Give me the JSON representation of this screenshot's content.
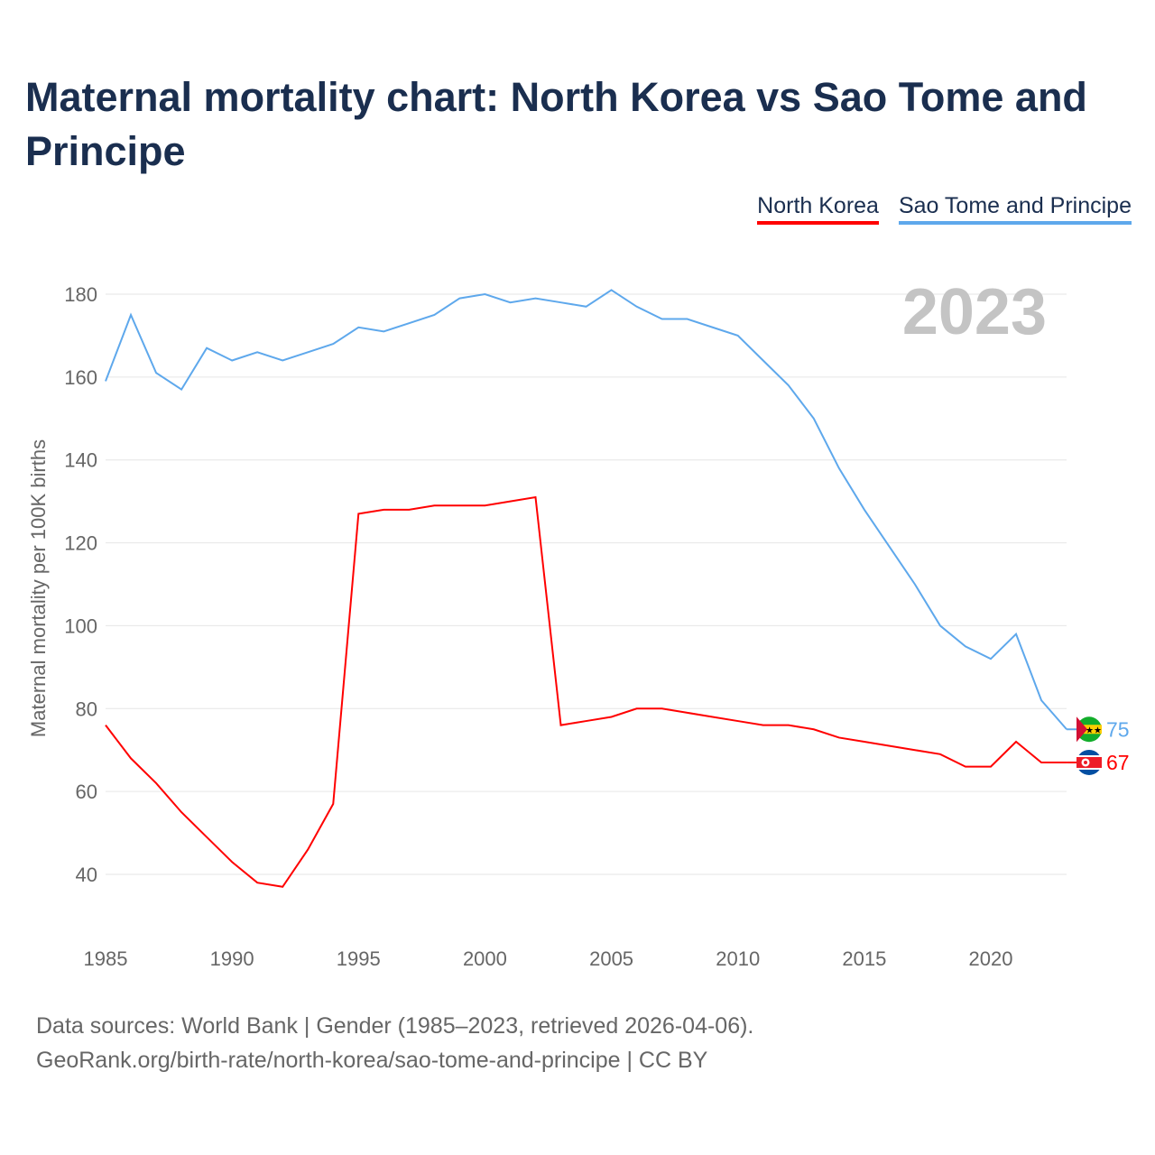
{
  "title": "Maternal mortality chart: North Korea vs Sao Tome and Principe",
  "source_line1": "Data sources: World Bank | Gender (1985–2023, retrieved 2026-04-06).",
  "source_line2": "GeoRank.org/birth-rate/north-korea/sao-tome-and-principe | CC BY",
  "chart_data": {
    "type": "line",
    "title": "Maternal mortality chart: North Korea vs Sao Tome and Principe",
    "xlabel": "",
    "ylabel": "Maternal mortality per 100K births",
    "year_label": "2023",
    "xlim": [
      1985,
      2023
    ],
    "ylim": [
      30,
      190
    ],
    "x_ticks": [
      1985,
      1990,
      1995,
      2000,
      2005,
      2010,
      2015,
      2020
    ],
    "y_ticks": [
      40,
      60,
      80,
      100,
      120,
      140,
      160,
      180
    ],
    "grid": true,
    "legend_position": "top-right",
    "x": [
      1985,
      1986,
      1987,
      1988,
      1989,
      1990,
      1991,
      1992,
      1993,
      1994,
      1995,
      1996,
      1997,
      1998,
      1999,
      2000,
      2001,
      2002,
      2003,
      2004,
      2005,
      2006,
      2007,
      2008,
      2009,
      2010,
      2011,
      2012,
      2013,
      2014,
      2015,
      2016,
      2017,
      2018,
      2019,
      2020,
      2021,
      2022,
      2023
    ],
    "series": [
      {
        "name": "North Korea",
        "color": "#ff0000",
        "end_label": "67",
        "values": [
          76,
          68,
          62,
          55,
          49,
          43,
          38,
          37,
          46,
          57,
          127,
          128,
          128,
          129,
          129,
          129,
          130,
          131,
          76,
          77,
          78,
          80,
          80,
          79,
          78,
          77,
          76,
          76,
          75,
          73,
          72,
          71,
          70,
          69,
          66,
          66,
          72,
          67,
          67
        ]
      },
      {
        "name": "Sao Tome and Principe",
        "color": "#5ea8ec",
        "end_label": "75",
        "values": [
          159,
          175,
          161,
          157,
          167,
          164,
          166,
          164,
          166,
          168,
          172,
          171,
          173,
          175,
          179,
          180,
          178,
          179,
          178,
          177,
          181,
          177,
          174,
          174,
          172,
          170,
          164,
          158,
          150,
          138,
          128,
          119,
          110,
          100,
          95,
          92,
          98,
          82,
          75
        ]
      }
    ]
  }
}
